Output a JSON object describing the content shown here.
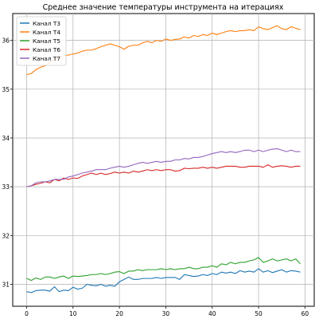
{
  "chart_data": {
    "type": "line",
    "title": "Среднее значение температуры инструмента на итерациях",
    "xlabel": "",
    "ylabel": "",
    "xlim": [
      -3,
      62
    ],
    "ylim": [
      30.55,
      36.55
    ],
    "xticks": [
      0,
      10,
      20,
      30,
      40,
      50,
      60
    ],
    "yticks": [
      31,
      32,
      33,
      34,
      35,
      36
    ],
    "grid": true,
    "legend_position": "top-left",
    "x": [
      0,
      1,
      2,
      3,
      4,
      5,
      6,
      7,
      8,
      9,
      10,
      11,
      12,
      13,
      14,
      15,
      16,
      17,
      18,
      19,
      20,
      21,
      22,
      23,
      24,
      25,
      26,
      27,
      28,
      29,
      30,
      31,
      32,
      33,
      34,
      35,
      36,
      37,
      38,
      39,
      40,
      41,
      42,
      43,
      44,
      45,
      46,
      47,
      48,
      49,
      50,
      51,
      52,
      53,
      54,
      55,
      56,
      57,
      58,
      59
    ],
    "series": [
      {
        "name": "Канал Т3",
        "color": "#1f77b4",
        "values": [
          30.85,
          30.83,
          30.87,
          30.88,
          30.88,
          30.86,
          30.95,
          30.85,
          30.88,
          30.87,
          30.94,
          30.9,
          30.92,
          31.0,
          30.98,
          30.97,
          31.0,
          30.96,
          30.98,
          30.96,
          31.05,
          31.1,
          31.15,
          31.1,
          31.1,
          31.12,
          31.12,
          31.12,
          31.14,
          31.12,
          31.14,
          31.14,
          31.14,
          31.1,
          31.2,
          31.18,
          31.16,
          31.17,
          31.2,
          31.18,
          31.22,
          31.2,
          31.25,
          31.23,
          31.25,
          31.22,
          31.28,
          31.25,
          31.27,
          31.25,
          31.32,
          31.25,
          31.28,
          31.24,
          31.27,
          31.3,
          31.25,
          31.28,
          31.27,
          31.25
        ]
      },
      {
        "name": "Канал Т4",
        "color": "#ff7f0e",
        "values": [
          35.3,
          35.32,
          35.4,
          35.45,
          35.48,
          35.55,
          35.6,
          35.66,
          35.68,
          35.7,
          35.72,
          35.74,
          35.78,
          35.8,
          35.8,
          35.83,
          35.87,
          35.9,
          35.93,
          35.9,
          35.87,
          35.82,
          35.88,
          35.9,
          35.9,
          35.95,
          35.98,
          35.95,
          36.0,
          35.98,
          36.03,
          36.0,
          36.02,
          36.03,
          36.07,
          36.05,
          36.1,
          36.08,
          36.12,
          36.1,
          36.15,
          36.12,
          36.15,
          36.18,
          36.2,
          36.18,
          36.2,
          36.2,
          36.22,
          36.2,
          36.28,
          36.24,
          36.22,
          36.26,
          36.3,
          36.24,
          36.22,
          36.28,
          36.25,
          36.22
        ]
      },
      {
        "name": "Канал Т5",
        "color": "#2ca02c",
        "values": [
          31.12,
          31.08,
          31.13,
          31.1,
          31.15,
          31.15,
          31.12,
          31.15,
          31.17,
          31.12,
          31.17,
          31.16,
          31.17,
          31.18,
          31.2,
          31.2,
          31.22,
          31.2,
          31.22,
          31.25,
          31.26,
          31.22,
          31.27,
          31.27,
          31.3,
          31.28,
          31.3,
          31.3,
          31.3,
          31.32,
          31.3,
          31.32,
          31.3,
          31.32,
          31.32,
          31.35,
          31.32,
          31.32,
          31.35,
          31.35,
          31.38,
          31.35,
          31.42,
          31.4,
          31.45,
          31.42,
          31.45,
          31.45,
          31.48,
          31.5,
          31.55,
          31.45,
          31.48,
          31.52,
          31.48,
          31.5,
          31.52,
          31.48,
          31.52,
          31.42
        ]
      },
      {
        "name": "Канал Т6",
        "color": "#d62728",
        "values": [
          33.0,
          33.02,
          33.05,
          33.07,
          33.1,
          33.08,
          33.15,
          33.12,
          33.18,
          33.15,
          33.18,
          33.17,
          33.22,
          33.25,
          33.28,
          33.25,
          33.28,
          33.25,
          33.27,
          33.3,
          33.28,
          33.3,
          33.28,
          33.32,
          33.3,
          33.32,
          33.35,
          33.33,
          33.35,
          33.33,
          33.35,
          33.35,
          33.32,
          33.33,
          33.38,
          33.37,
          33.38,
          33.38,
          33.4,
          33.38,
          33.4,
          33.38,
          33.4,
          33.42,
          33.42,
          33.42,
          33.4,
          33.4,
          33.42,
          33.42,
          33.42,
          33.4,
          33.45,
          33.4,
          33.42,
          33.43,
          33.42,
          33.4,
          33.42,
          33.42
        ]
      },
      {
        "name": "Канал Т7",
        "color": "#9467bd",
        "values": [
          33.0,
          33.02,
          33.08,
          33.1,
          33.1,
          33.12,
          33.15,
          33.15,
          33.15,
          33.2,
          33.22,
          33.25,
          33.28,
          33.3,
          33.32,
          33.35,
          33.35,
          33.35,
          33.38,
          33.4,
          33.42,
          33.4,
          33.42,
          33.45,
          33.48,
          33.5,
          33.48,
          33.5,
          33.52,
          33.5,
          33.52,
          33.52,
          33.55,
          33.55,
          33.58,
          33.57,
          33.6,
          33.6,
          33.62,
          33.65,
          33.68,
          33.7,
          33.72,
          33.7,
          33.72,
          33.7,
          33.72,
          33.75,
          33.75,
          33.72,
          33.75,
          33.72,
          33.75,
          33.77,
          33.78,
          33.75,
          33.72,
          33.75,
          33.72,
          33.72
        ]
      }
    ]
  }
}
